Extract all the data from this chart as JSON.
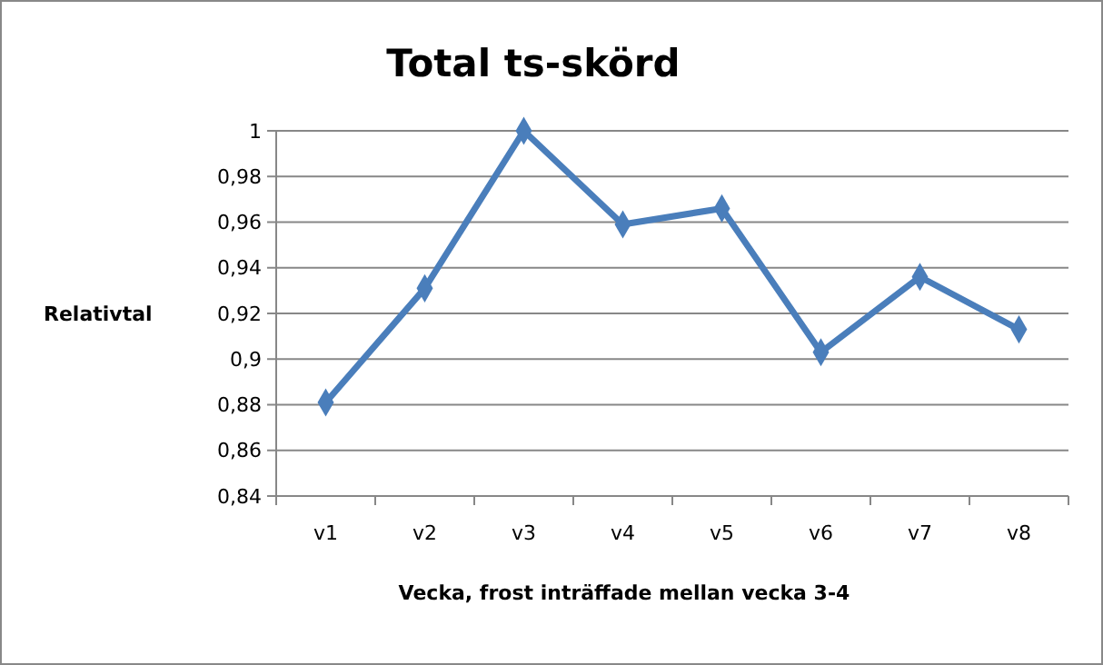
{
  "chart_data": {
    "type": "line",
    "title": "Total ts-skörd",
    "xlabel": "Vecka, frost inträffade mellan vecka 3-4",
    "ylabel": "Relativtal",
    "categories": [
      "v1",
      "v2",
      "v3",
      "v4",
      "v5",
      "v6",
      "v7",
      "v8"
    ],
    "series": [
      {
        "color": "#4a7ebb",
        "values": [
          0.881,
          0.931,
          1.0,
          0.959,
          0.966,
          0.903,
          0.936,
          0.913
        ]
      }
    ],
    "ylim": [
      0.84,
      1
    ],
    "yticks": [
      {
        "value": 0.84,
        "label": "0,84"
      },
      {
        "value": 0.86,
        "label": "0,86"
      },
      {
        "value": 0.88,
        "label": "0,88"
      },
      {
        "value": 0.9,
        "label": "0,9"
      },
      {
        "value": 0.92,
        "label": "0,92"
      },
      {
        "value": 0.94,
        "label": "0,94"
      },
      {
        "value": 0.96,
        "label": "0,96"
      },
      {
        "value": 0.98,
        "label": "0,98"
      },
      {
        "value": 1,
        "label": "1"
      }
    ],
    "grid": "y",
    "marker": "diamond",
    "line_style": "solid"
  }
}
